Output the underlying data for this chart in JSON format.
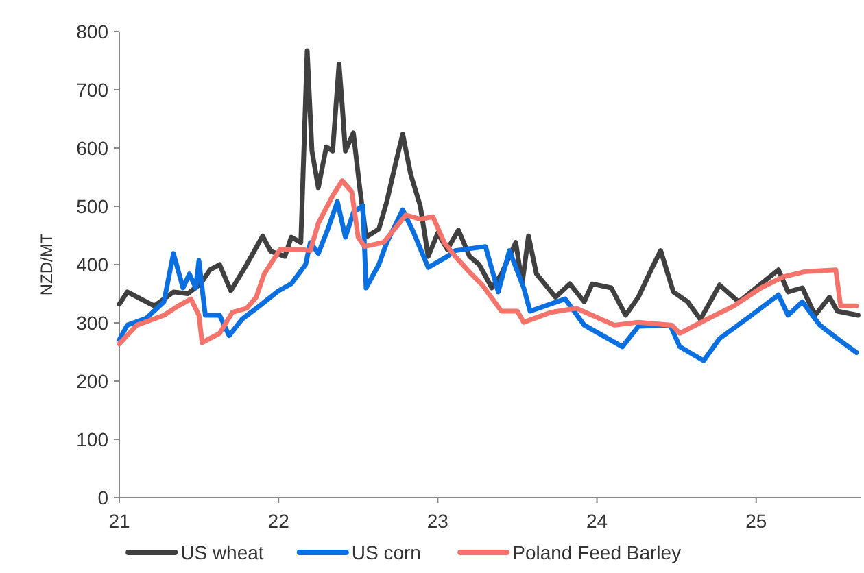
{
  "chart_data": {
    "type": "line",
    "ylabel": "NZD/MT",
    "xlim": [
      21,
      25.66
    ],
    "xticks": [
      21,
      22,
      23,
      24,
      25
    ],
    "ylim": [
      0,
      800
    ],
    "yticks": [
      0,
      100,
      200,
      300,
      400,
      500,
      600,
      700,
      800
    ],
    "grid": false,
    "legend": "bottom",
    "marker": "none",
    "line_style": "solid",
    "series": [
      {
        "name": "US wheat",
        "color": "#404040",
        "x": [
          21.0,
          21.05,
          21.22,
          21.34,
          21.43,
          21.51,
          21.57,
          21.63,
          21.7,
          21.8,
          21.9,
          21.95,
          22.04,
          22.08,
          22.14,
          22.18,
          22.21,
          22.25,
          22.3,
          22.34,
          22.38,
          22.4,
          22.42,
          22.47,
          22.51,
          22.55,
          22.63,
          22.68,
          22.74,
          22.78,
          22.83,
          22.89,
          22.94,
          23.0,
          23.06,
          23.13,
          23.2,
          23.26,
          23.34,
          23.4,
          23.49,
          23.53,
          23.57,
          23.62,
          23.74,
          23.83,
          23.92,
          23.97,
          24.09,
          24.18,
          24.26,
          24.34,
          24.4,
          24.48,
          24.57,
          24.65,
          24.77,
          24.89,
          25.0,
          25.14,
          25.2,
          25.29,
          25.37,
          25.46,
          25.51,
          25.64
        ],
        "values": [
          332,
          353,
          329,
          353,
          350,
          367,
          391,
          400,
          355,
          400,
          449,
          423,
          414,
          447,
          438,
          767,
          595,
          532,
          602,
          595,
          744,
          673,
          595,
          626,
          532,
          447,
          461,
          508,
          579,
          624,
          555,
          501,
          414,
          454,
          426,
          459,
          414,
          400,
          360,
          384,
          438,
          367,
          449,
          384,
          344,
          367,
          336,
          367,
          360,
          313,
          344,
          391,
          424,
          353,
          336,
          306,
          365,
          336,
          360,
          391,
          353,
          360,
          313,
          344,
          320,
          313
        ]
      },
      {
        "name": "US corn",
        "color": "#0a6fe0",
        "x": [
          21.0,
          21.05,
          21.17,
          21.28,
          21.34,
          21.4,
          21.44,
          21.48,
          21.5,
          21.54,
          21.63,
          21.69,
          21.77,
          21.88,
          22.0,
          22.08,
          22.17,
          22.2,
          22.25,
          22.31,
          22.37,
          22.42,
          22.47,
          22.53,
          22.55,
          22.63,
          22.68,
          22.78,
          22.85,
          22.94,
          23.06,
          23.11,
          23.3,
          23.38,
          23.45,
          23.54,
          23.58,
          23.8,
          23.92,
          24.16,
          24.26,
          24.46,
          24.52,
          24.67,
          24.77,
          24.97,
          25.14,
          25.2,
          25.29,
          25.4,
          25.51,
          25.63
        ],
        "values": [
          271,
          296,
          308,
          336,
          419,
          360,
          384,
          360,
          407,
          313,
          313,
          278,
          306,
          329,
          355,
          367,
          400,
          438,
          419,
          461,
          508,
          447,
          489,
          501,
          360,
          400,
          438,
          494,
          454,
          395,
          414,
          424,
          431,
          353,
          424,
          360,
          320,
          341,
          296,
          259,
          294,
          296,
          259,
          235,
          273,
          313,
          348,
          313,
          336,
          296,
          273,
          249
        ]
      },
      {
        "name": "Poland Feed Barley",
        "color": "#f4736b",
        "x": [
          21.0,
          21.11,
          21.28,
          21.37,
          21.45,
          21.5,
          21.52,
          21.63,
          21.71,
          21.8,
          21.86,
          21.91,
          22.01,
          22.14,
          22.2,
          22.25,
          22.34,
          22.4,
          22.46,
          22.5,
          22.54,
          22.66,
          22.8,
          22.89,
          22.97,
          23.04,
          23.11,
          23.21,
          23.28,
          23.4,
          23.5,
          23.54,
          23.71,
          23.87,
          24.11,
          24.26,
          24.47,
          24.52,
          24.69,
          24.86,
          25.03,
          25.17,
          25.31,
          25.5,
          25.53,
          25.63
        ],
        "values": [
          264,
          296,
          313,
          329,
          341,
          313,
          266,
          282,
          318,
          325,
          344,
          384,
          426,
          426,
          424,
          471,
          518,
          544,
          525,
          447,
          431,
          438,
          485,
          478,
          482,
          438,
          414,
          384,
          365,
          320,
          320,
          301,
          318,
          325,
          296,
          301,
          296,
          282,
          306,
          329,
          360,
          379,
          388,
          391,
          329,
          329
        ]
      }
    ]
  }
}
